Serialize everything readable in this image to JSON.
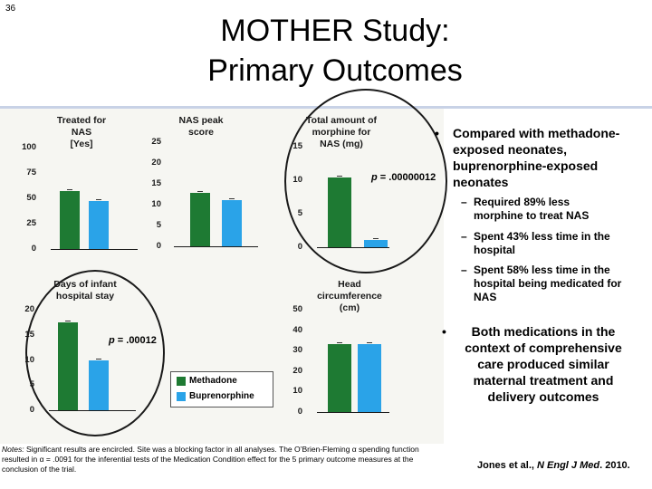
{
  "slide_number": "36",
  "title": {
    "line1": "MOTHER Study:",
    "line2": "Primary Outcomes"
  },
  "colors": {
    "methadone": "#1e7a33",
    "buprenorphine": "#2aa3e8",
    "panel": "#f6f6f2"
  },
  "chart_data": [
    {
      "type": "bar",
      "title_lines": [
        "Treated for",
        "NAS",
        "[Yes]"
      ],
      "yticks": [
        "100",
        "75",
        "50",
        "25",
        "0"
      ],
      "ylim": [
        0,
        100
      ],
      "series": [
        {
          "name": "Methadone",
          "values": [
            57
          ]
        },
        {
          "name": "Buprenorphine",
          "values": [
            47
          ]
        }
      ]
    },
    {
      "type": "bar",
      "title_lines": [
        "NAS peak",
        "score"
      ],
      "yticks": [
        "25",
        "20",
        "15",
        "10",
        "5",
        "0"
      ],
      "ylim": [
        0,
        25
      ],
      "series": [
        {
          "name": "Methadone",
          "values": [
            12.8
          ]
        },
        {
          "name": "Buprenorphine",
          "values": [
            11.0
          ]
        }
      ]
    },
    {
      "type": "bar",
      "title_lines": [
        "Total amount of",
        "morphine for",
        "NAS (mg)"
      ],
      "yticks": [
        "15",
        "10",
        "5",
        "0"
      ],
      "ylim": [
        0,
        15
      ],
      "series": [
        {
          "name": "Methadone",
          "values": [
            10.4
          ]
        },
        {
          "name": "Buprenorphine",
          "values": [
            1.1
          ]
        }
      ],
      "p_value": "= .00000012"
    },
    {
      "type": "bar",
      "title_lines": [
        "Days of infant",
        "hospital stay"
      ],
      "yticks": [
        "20",
        "15",
        "10",
        "5",
        "0"
      ],
      "ylim": [
        0,
        20
      ],
      "series": [
        {
          "name": "Methadone",
          "values": [
            17.5
          ]
        },
        {
          "name": "Buprenorphine",
          "values": [
            10.0
          ]
        }
      ],
      "p_value": "= .00012"
    },
    {
      "type": "bar",
      "title_lines": [
        "Head",
        "circumference",
        "(cm)"
      ],
      "yticks": [
        "50",
        "40",
        "30",
        "20",
        "10",
        "0"
      ],
      "ylim": [
        0,
        50
      ],
      "series": [
        {
          "name": "Methadone",
          "values": [
            33.0
          ]
        },
        {
          "name": "Buprenorphine",
          "values": [
            33.0
          ]
        }
      ]
    }
  ],
  "p_symbol": "p",
  "legend": {
    "methadone": "Methadone",
    "buprenorphine": "Buprenorphine"
  },
  "notes": {
    "label": "Notes:",
    "text": " Significant results are encircled. Site was a blocking factor in all analyses. The O’Brien-Fleming α spending function resulted in α = .0091 for the inferential tests of the Medication Condition effect for the 5 primary outcome measures at the conclusion of the trial."
  },
  "bullets": {
    "b1_lines": [
      "Compared with methadone-",
      "exposed neonates,",
      "buprenorphine-exposed",
      "neonates"
    ],
    "sub1_lines": [
      "Required 89% less",
      "morphine to treat NAS"
    ],
    "sub2_lines": [
      "Spent 43% less time in the",
      "hospital"
    ],
    "sub3_lines": [
      "Spent 58% less time in the",
      "hospital being medicated for",
      "NAS"
    ],
    "b2_lines": [
      "Both medications in the",
      "context of comprehensive",
      "care produced similar",
      "maternal treatment and",
      "delivery outcomes"
    ]
  },
  "citation": {
    "authors": "Jones et al., ",
    "journal": "N Engl J Med",
    "year": ". 2010."
  }
}
